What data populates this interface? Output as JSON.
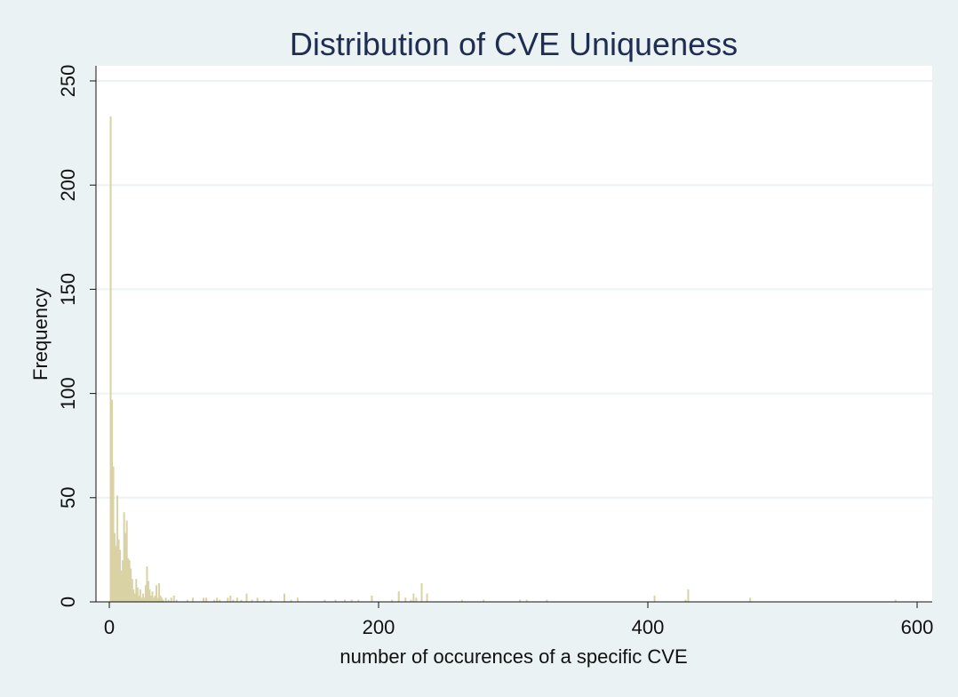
{
  "colors": {
    "background": "#eaf2f3",
    "plot_background": "#ffffff",
    "grid": "#eaf2f3",
    "bar": "#d8d2a4",
    "title": "#1f2d52"
  },
  "chart_data": {
    "type": "bar",
    "title": "Distribution of CVE Uniqueness",
    "xlabel": "number of occurences of a specific CVE",
    "ylabel": "Frequency",
    "xlim": [
      -10,
      610
    ],
    "ylim": [
      0,
      250
    ],
    "xticks": [
      0,
      200,
      400,
      600
    ],
    "yticks": [
      0,
      50,
      100,
      150,
      200,
      250
    ],
    "grid": true,
    "legend": "none",
    "bin_width": 1.3,
    "x": [
      1,
      2,
      3,
      4,
      5,
      6,
      7,
      8,
      9,
      10,
      11,
      12,
      13,
      14,
      15,
      16,
      17,
      18,
      19,
      20,
      21,
      22,
      23,
      24,
      25,
      26,
      27,
      28,
      29,
      30,
      31,
      32,
      33,
      34,
      35,
      36,
      37,
      38,
      39,
      40,
      42,
      44,
      46,
      48,
      50,
      58,
      62,
      70,
      72,
      78,
      80,
      82,
      88,
      90,
      92,
      95,
      98,
      102,
      106,
      110,
      115,
      120,
      130,
      135,
      140,
      160,
      168,
      175,
      180,
      185,
      195,
      210,
      215,
      220,
      224,
      226,
      228,
      232,
      236,
      262,
      278,
      305,
      310,
      325,
      405,
      428,
      430,
      476,
      584
    ],
    "values": [
      233,
      97,
      65,
      33,
      27,
      51,
      30,
      25,
      15,
      20,
      43,
      33,
      39,
      21,
      20,
      16,
      11,
      6,
      4,
      11,
      7,
      3,
      6,
      2,
      4,
      2,
      8,
      17,
      10,
      6,
      3,
      5,
      2,
      3,
      8,
      2,
      9,
      3,
      2,
      1,
      2,
      1,
      2,
      3,
      1,
      1,
      2,
      2,
      2,
      1,
      2,
      1,
      2,
      3,
      1,
      2,
      1,
      4,
      1,
      2,
      1,
      1,
      4,
      1,
      2,
      1,
      1,
      1,
      1,
      1,
      3,
      1,
      5,
      2,
      1,
      4,
      2,
      9,
      4,
      1,
      1,
      1,
      1,
      1,
      3,
      1,
      6,
      2,
      1
    ]
  }
}
